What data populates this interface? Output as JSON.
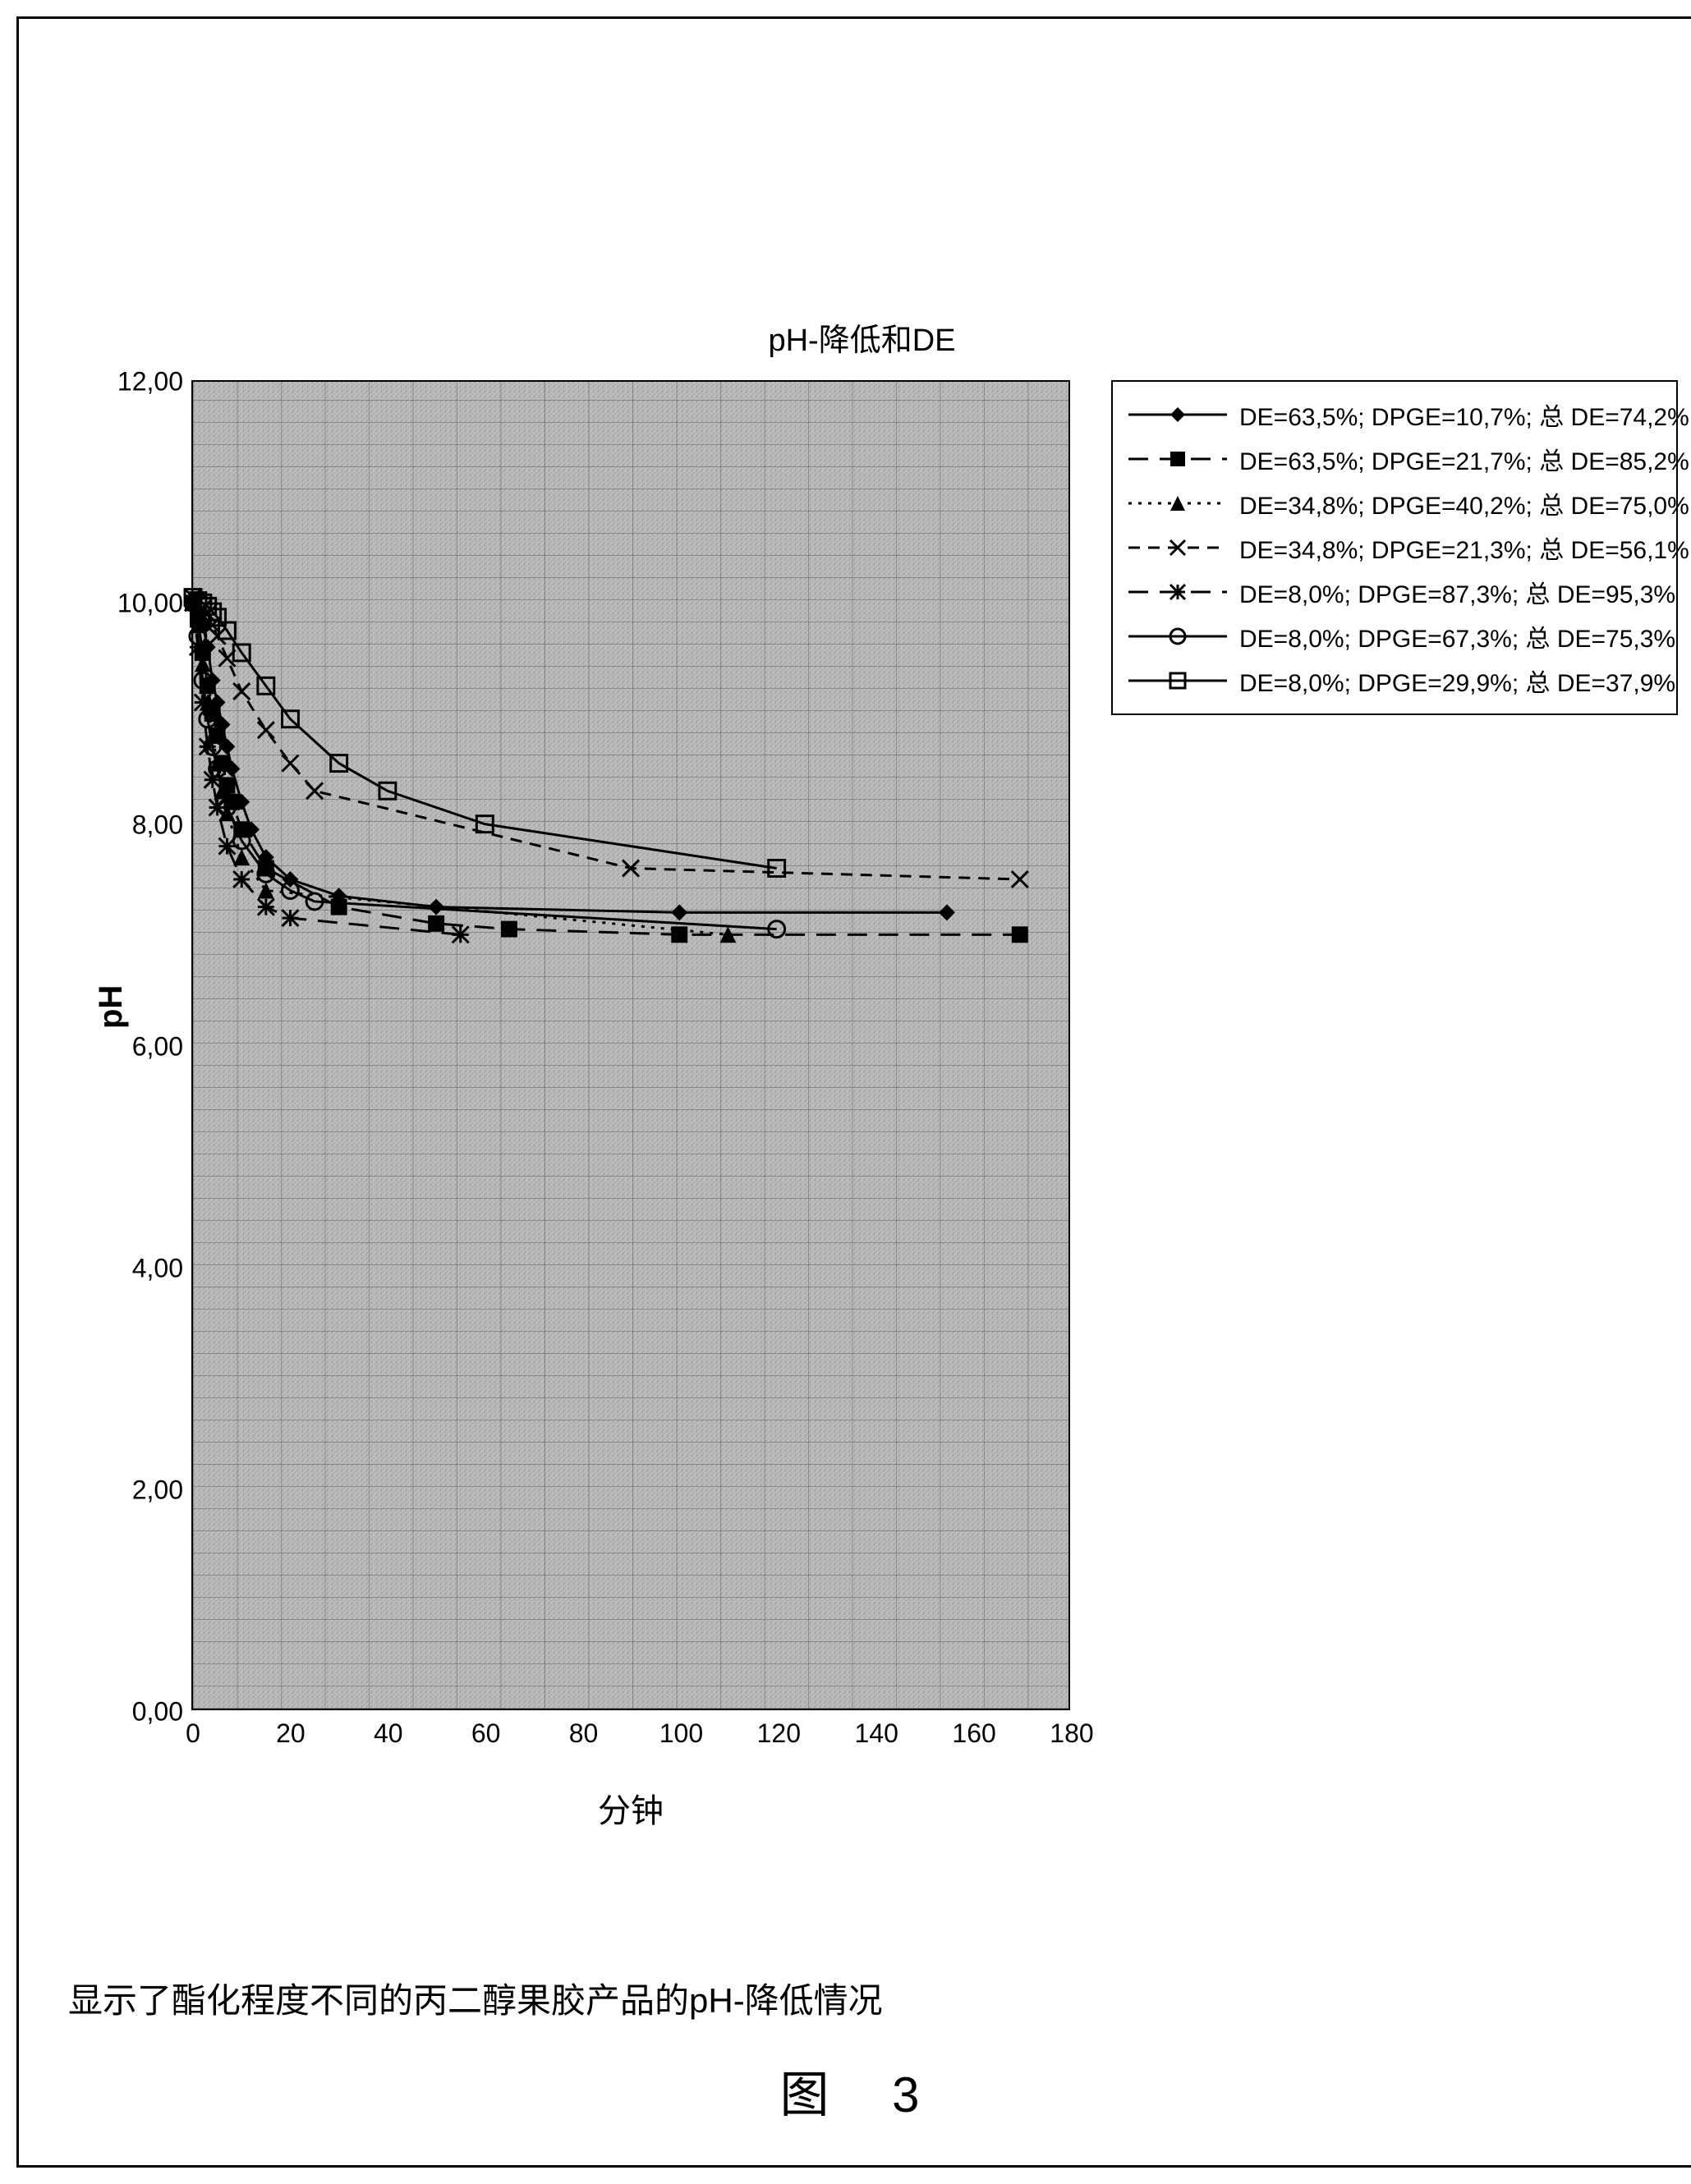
{
  "chart": {
    "type": "line",
    "title": "pH-降低和DE",
    "xlabel": "分钟",
    "ylabel": "pH",
    "title_fontsize": 38,
    "label_fontsize": 40,
    "tick_fontsize": 32,
    "background_color": "#b8b8b8",
    "grid_color": "#707070",
    "grid_major_x_step": 20,
    "grid_major_y_step": 2.0,
    "grid_minor_y_step": 0.2,
    "xlim": [
      0,
      180
    ],
    "ylim": [
      0,
      12
    ],
    "xticks": [
      0,
      20,
      40,
      60,
      80,
      100,
      120,
      140,
      160,
      180
    ],
    "yticks": [
      "0,00",
      "2,00",
      "4,00",
      "6,00",
      "8,00",
      "10,00",
      "12,00"
    ],
    "ytick_values": [
      0,
      2,
      4,
      6,
      8,
      10,
      12
    ],
    "line_color": "#000000",
    "line_width": 3,
    "marker_size": 10,
    "series": [
      {
        "label": "DE=63,5%; DPGE=10,7%;   总   DE=74,2%",
        "marker": "diamond-filled",
        "dash": "solid",
        "x": [
          0,
          1,
          2,
          3,
          4,
          5,
          6,
          7,
          8,
          10,
          12,
          15,
          20,
          30,
          50,
          100,
          155
        ],
        "y": [
          10.0,
          9.9,
          9.8,
          9.6,
          9.3,
          9.1,
          8.9,
          8.7,
          8.5,
          8.2,
          7.95,
          7.7,
          7.5,
          7.35,
          7.25,
          7.2,
          7.2
        ]
      },
      {
        "label": "DE=63,5%; DPGE=21,7%;   总   DE=85,2%",
        "marker": "square-filled",
        "dash": "long-dash",
        "x": [
          0,
          1,
          2,
          3,
          4,
          5,
          6,
          7,
          8,
          10,
          15,
          30,
          50,
          65,
          100,
          170
        ],
        "y": [
          10.0,
          9.85,
          9.55,
          9.25,
          9.0,
          8.8,
          8.55,
          8.35,
          8.2,
          7.95,
          7.6,
          7.25,
          7.1,
          7.05,
          7.0,
          7.0
        ]
      },
      {
        "label": "DE=34,8%; DPGE=40,2%;   总   DE=75,0%",
        "marker": "triangle-filled",
        "dash": "dot",
        "x": [
          0,
          1,
          2,
          3,
          4,
          5,
          6,
          7,
          10,
          15,
          110
        ],
        "y": [
          10.0,
          9.8,
          9.45,
          9.1,
          8.8,
          8.55,
          8.3,
          8.1,
          7.7,
          7.4,
          7.0
        ]
      },
      {
        "label": "DE=34,8%; DPGE=21,3%;   总   DE=56,1%",
        "marker": "x",
        "dash": "dash",
        "x": [
          0,
          1,
          2,
          3,
          4,
          5,
          7,
          10,
          15,
          20,
          25,
          90,
          170
        ],
        "y": [
          10.05,
          10.0,
          9.95,
          9.9,
          9.8,
          9.7,
          9.5,
          9.2,
          8.85,
          8.55,
          8.3,
          7.6,
          7.5
        ]
      },
      {
        "label": "DE=8,0%; DPGE=87,3%;   总   DE=95,3%",
        "marker": "asterisk",
        "dash": "long-dash",
        "x": [
          0,
          1,
          2,
          3,
          4,
          5,
          7,
          10,
          15,
          20,
          55
        ],
        "y": [
          10.0,
          9.6,
          9.1,
          8.7,
          8.4,
          8.15,
          7.8,
          7.5,
          7.25,
          7.15,
          7.0
        ]
      },
      {
        "label": "DE=8,0%; DPGE=67,3%;   总   DE=75,3%",
        "marker": "circle-open",
        "dash": "solid",
        "x": [
          0,
          1,
          2,
          3,
          4,
          5,
          7,
          10,
          15,
          20,
          25,
          120
        ],
        "y": [
          10.0,
          9.7,
          9.3,
          8.95,
          8.7,
          8.5,
          8.15,
          7.85,
          7.55,
          7.4,
          7.3,
          7.05
        ]
      },
      {
        "label": "DE=8,0%; DPGE=29,9%;   总   DE=37,9%",
        "marker": "square-open",
        "dash": "solid",
        "x": [
          0,
          1,
          2,
          3,
          4,
          5,
          7,
          10,
          15,
          20,
          30,
          40,
          60,
          120
        ],
        "y": [
          10.05,
          10.02,
          10.0,
          9.97,
          9.92,
          9.87,
          9.75,
          9.55,
          9.25,
          8.95,
          8.55,
          8.3,
          8.0,
          7.6
        ]
      }
    ]
  },
  "caption": "显示了酯化程度不同的丙二醇果胶产品的pH-降低情况",
  "figure_label": "图    3",
  "legend_fontsize": 30,
  "border_color": "#000000"
}
